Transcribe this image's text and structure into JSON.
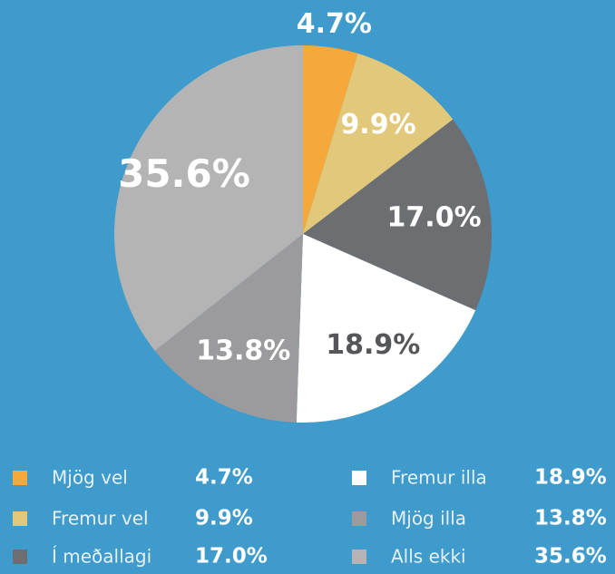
{
  "chart_data": {
    "type": "pie",
    "categories": [
      "Mjög vel",
      "Fremur vel",
      "Í meðallagi",
      "Fremur illa",
      "Mjög illa",
      "Alls ekki"
    ],
    "values": [
      4.7,
      9.9,
      17.0,
      18.9,
      13.8,
      35.6
    ],
    "value_labels": [
      "4.7%",
      "9.9%",
      "17.0%",
      "18.9%",
      "13.8%",
      "35.6%"
    ],
    "colors": [
      "#f5a93a",
      "#e2c87a",
      "#6d6e72",
      "#ffffff",
      "#9b9b9d",
      "#b4b4b5"
    ]
  }
}
